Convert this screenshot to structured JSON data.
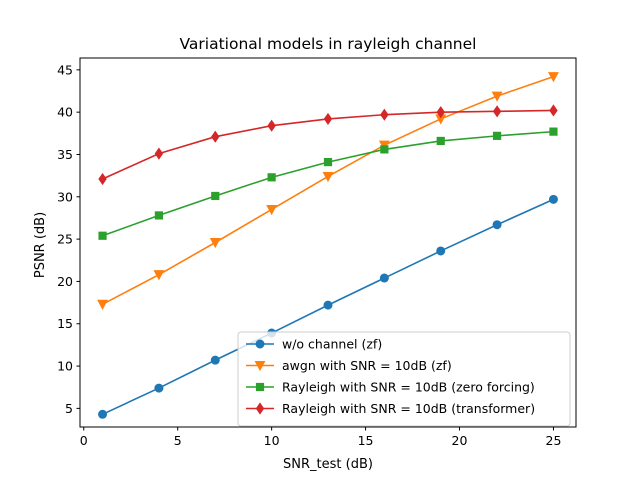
{
  "chart_data": {
    "type": "line",
    "title": "Variational models in rayleigh channel",
    "xlabel": "SNR_test (dB)",
    "ylabel": "PSNR (dB)",
    "xlim": [
      -0.2,
      26.2
    ],
    "ylim": [
      2.8,
      46.4
    ],
    "xticks": [
      0,
      5,
      10,
      15,
      20,
      25
    ],
    "yticks": [
      5,
      10,
      15,
      20,
      25,
      30,
      35,
      40,
      45
    ],
    "grid": false,
    "legend_position": "lower-right",
    "x": [
      1,
      4,
      7,
      10,
      13,
      16,
      19,
      22,
      25
    ],
    "series": [
      {
        "name": "w/o channel (zf)",
        "color": "#1f77b4",
        "marker": "circle",
        "values": [
          4.3,
          7.4,
          10.7,
          13.9,
          17.2,
          20.4,
          23.6,
          26.7,
          29.7
        ]
      },
      {
        "name": "awgn with SNR = 10dB (zf)",
        "color": "#ff7f0e",
        "marker": "triangle-down",
        "values": [
          17.3,
          20.8,
          24.6,
          28.5,
          32.4,
          36.1,
          39.2,
          41.9,
          44.2
        ]
      },
      {
        "name": "Rayleigh with SNR = 10dB (zero forcing)",
        "color": "#2ca02c",
        "marker": "square",
        "values": [
          25.4,
          27.8,
          30.1,
          32.3,
          34.1,
          35.6,
          36.6,
          37.2,
          37.7
        ]
      },
      {
        "name": "Rayleigh with SNR = 10dB (transformer)",
        "color": "#d62728",
        "marker": "diamond",
        "values": [
          32.1,
          35.1,
          37.1,
          38.4,
          39.2,
          39.7,
          40.0,
          40.1,
          40.2
        ]
      }
    ]
  }
}
